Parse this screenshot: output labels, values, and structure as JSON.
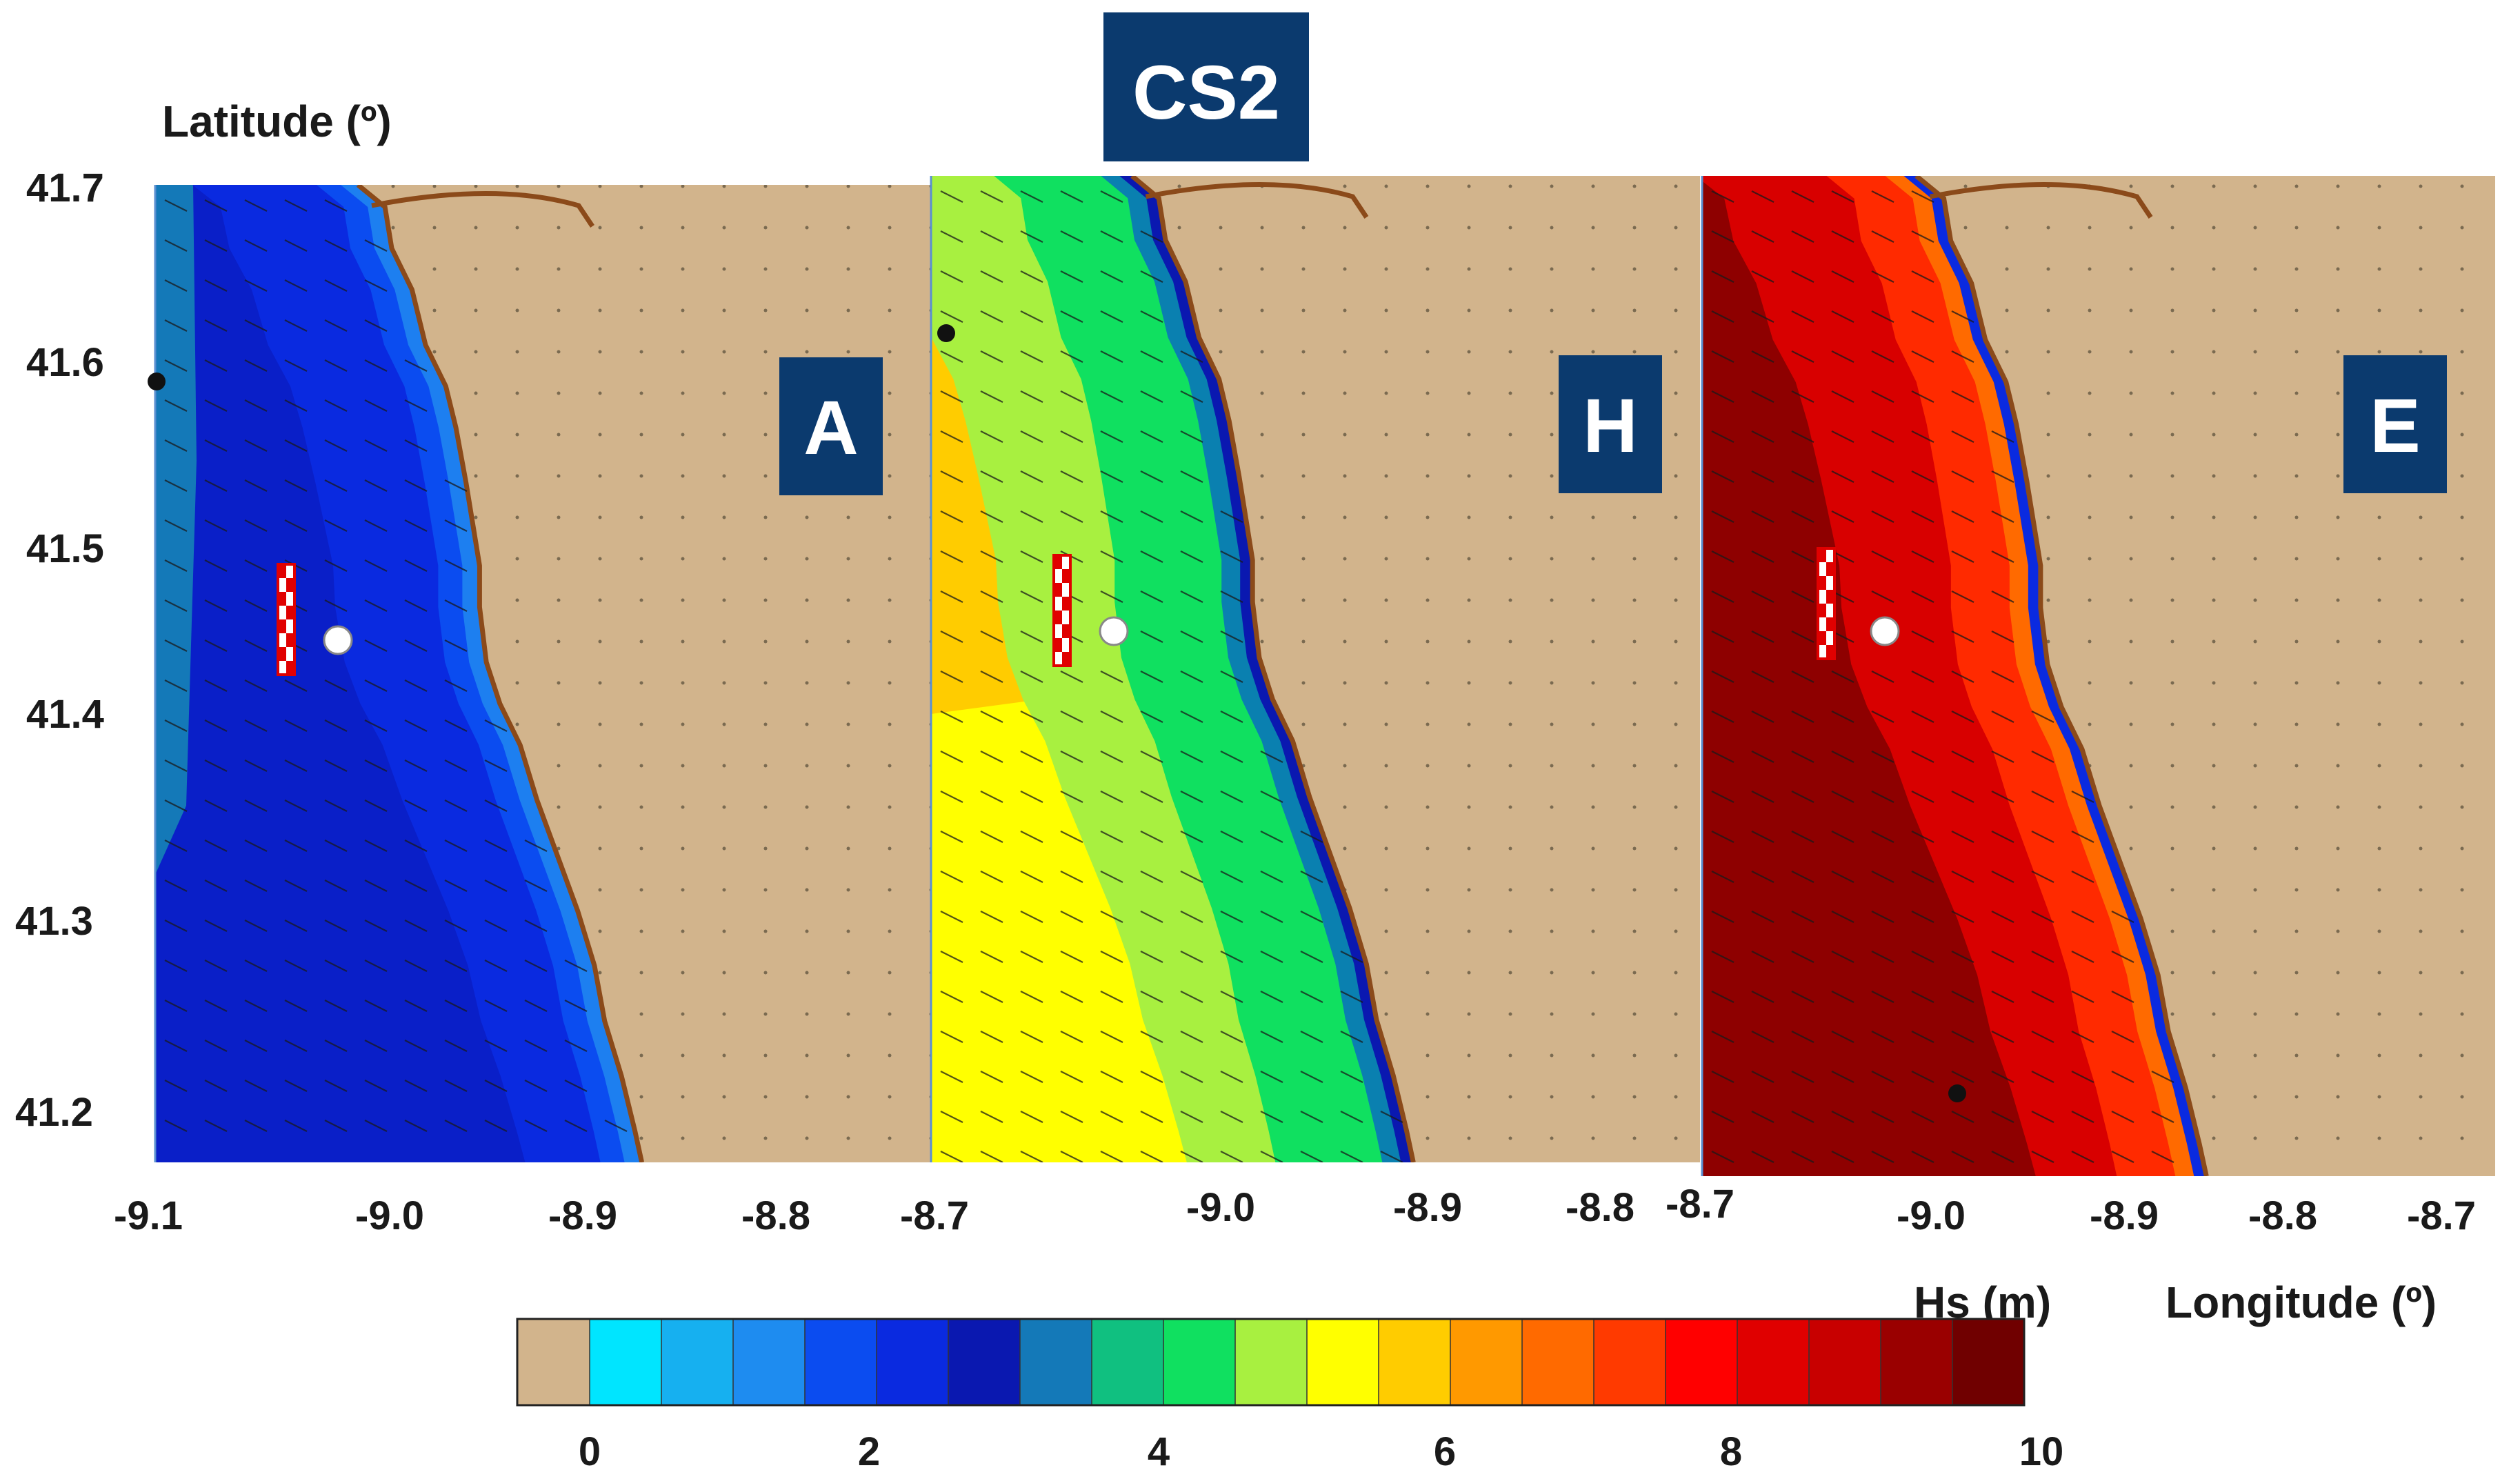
{
  "title": "CS2",
  "y_axis_label": "Latitude (º)",
  "x_axis_label": "Longitude (º)",
  "colorbar_label": "Hs (m)",
  "latitude_ticks": [
    "41.7",
    "41.6",
    "41.5",
    "41.4",
    "41.3",
    "41.2"
  ],
  "panels": [
    {
      "id": "A",
      "label": "A",
      "longitude_ticks": [
        "-9.1",
        "-9.0",
        "-8.9",
        "-8.8",
        "-8.7"
      ],
      "offshore_color": "#0a1fc8",
      "mid_color": "#0a2ae0",
      "nearshore_color": "#0b4cf0",
      "edge_color": "#1d7ff0",
      "far_offshore_color": "#1479b8"
    },
    {
      "id": "H",
      "label": "H",
      "longitude_ticks": [
        "-9.0",
        "-8.9",
        "-8.8",
        "-8.7"
      ],
      "offshore_color": "#ffff00",
      "mid_color": "#a8f040",
      "nearshore_color": "#10e060",
      "edge_color": "#0a80b0",
      "far_offshore_color": "#ffcc00"
    },
    {
      "id": "E",
      "label": "E",
      "longitude_ticks": [
        "-9.0",
        "-8.9",
        "-8.8",
        "-8.7"
      ],
      "offshore_color": "#a00000",
      "mid_color": "#d80000",
      "nearshore_color": "#ff2a00",
      "edge_color": "#ff6a00",
      "far_offshore_color": "#8a0000"
    }
  ],
  "colorbar": {
    "land_color": "#d2b48c",
    "colors": [
      "#00e5ff",
      "#16b0f0",
      "#1e8cf0",
      "#0b4cf0",
      "#0a2ae0",
      "#0a18b0",
      "#1479b8",
      "#10c080",
      "#10e060",
      "#a8f040",
      "#ffff00",
      "#ffcc00",
      "#ff9900",
      "#ff6a00",
      "#ff3a00",
      "#ff0000",
      "#e00000",
      "#c80000",
      "#9a0000",
      "#700000"
    ],
    "tick_labels": [
      "0",
      "2",
      "4",
      "6",
      "8",
      "10"
    ]
  },
  "colors": {
    "land": "#d2b48c",
    "coastline": "#8b4a1a",
    "badge": "#0b3a6e",
    "arrow": "#1a1a1a"
  }
}
